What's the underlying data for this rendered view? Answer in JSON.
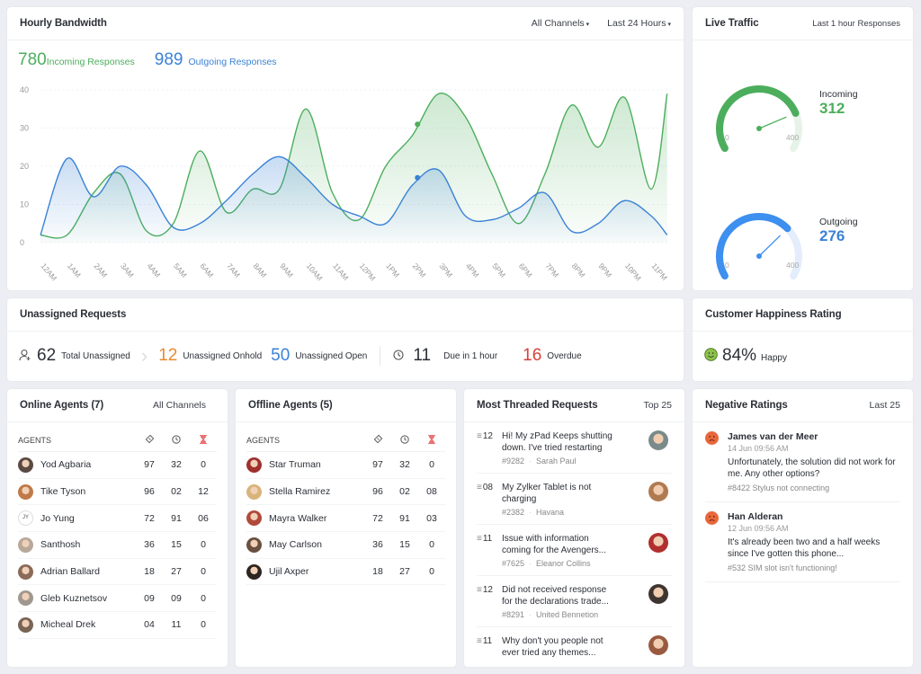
{
  "bandwidth": {
    "title": "Hourly Bandwidth",
    "filter_channels": "All Channels",
    "filter_range": "Last 24 Hours",
    "incoming_count": "780",
    "incoming_label": "Incoming Responses",
    "outgoing_count": "989",
    "outgoing_label": "Outgoing Responses"
  },
  "chart_data": {
    "type": "area",
    "categories": [
      "12AM",
      "1AM",
      "2AM",
      "3AM",
      "4AM",
      "5AM",
      "6AM",
      "7AM",
      "8AM",
      "9AM",
      "10AM",
      "11AM",
      "12PM",
      "1PM",
      "2PM",
      "3PM",
      "4PM",
      "5PM",
      "6PM",
      "7PM",
      "8PM",
      "9PM",
      "10PM",
      "11PM"
    ],
    "x": [
      0,
      1,
      2,
      3,
      4,
      5,
      6,
      7,
      8,
      9,
      10,
      11,
      12,
      13,
      14,
      15,
      16,
      17,
      18,
      19,
      20,
      21,
      22,
      23,
      23.6
    ],
    "ylim": [
      0,
      40
    ],
    "yticks": [
      "0",
      "10",
      "20",
      "30",
      "40"
    ],
    "grid": true,
    "series": [
      {
        "name": "Incoming Responses",
        "color": "#4cae5c",
        "values": [
          2,
          2,
          13,
          18,
          3,
          5,
          24,
          8,
          14,
          14,
          35,
          13,
          6,
          20,
          28,
          39,
          33,
          18,
          5,
          18,
          36,
          25,
          38,
          14,
          39
        ]
      },
      {
        "name": "Outgoing Responses",
        "color": "#3b82d6",
        "values": [
          2,
          22,
          12,
          20,
          15,
          4,
          5,
          11,
          18,
          22.5,
          17,
          10,
          7,
          5,
          15,
          19,
          7,
          6,
          9,
          13,
          3,
          5,
          11,
          7,
          2
        ]
      }
    ],
    "markers": [
      {
        "series": 0,
        "x": 14.2,
        "y": 31
      },
      {
        "series": 1,
        "x": 14.2,
        "y": 17
      }
    ]
  },
  "live_traffic": {
    "title": "Live Traffic",
    "subtitle": "Last 1 hour Responses",
    "gauges": [
      {
        "label": "Incoming",
        "value": 312,
        "min": "0",
        "max": "400",
        "color": "#4cae5c",
        "track": "#e6f3e8"
      },
      {
        "label": "Outgoing",
        "value": 276,
        "min": "0",
        "max": "400",
        "color": "#3d8ff0",
        "track": "#e3edfb"
      }
    ]
  },
  "unassigned": {
    "title": "Unassigned Requests",
    "total": "62",
    "total_label": "Total Unassigned",
    "onhold": "12",
    "onhold_label": "Unassigned Onhold",
    "open": "50",
    "open_label": "Unassigned Open",
    "due": "11",
    "due_label": "Due in 1 hour",
    "overdue": "16",
    "overdue_label": "Overdue",
    "colors": {
      "onhold": "#e98a2f",
      "open": "#3b82d6",
      "overdue": "#d9403a"
    }
  },
  "happiness": {
    "title": "Customer Happiness Rating",
    "value": "84%",
    "label": "Happy"
  },
  "online_agents": {
    "title": "Online Agents (7)",
    "filter": "All Channels",
    "col_agents": "AGENTS",
    "rows": [
      {
        "name": "Yod Agbaria",
        "a": "97",
        "b": "32",
        "c": "0",
        "avatar": "#5a4a42"
      },
      {
        "name": "Tike Tyson",
        "a": "96",
        "b": "02",
        "c": "12",
        "avatar": "#c07a4a"
      },
      {
        "name": "Jo Yung",
        "a": "72",
        "b": "91",
        "c": "06",
        "initials": "JY"
      },
      {
        "name": "Santhosh",
        "a": "36",
        "b": "15",
        "c": "0",
        "avatar": "#b8a89a"
      },
      {
        "name": "Adrian Ballard",
        "a": "18",
        "b": "27",
        "c": "0",
        "avatar": "#8a6a58"
      },
      {
        "name": "Gleb Kuznetsov",
        "a": "09",
        "b": "09",
        "c": "0",
        "avatar": "#a0978e"
      },
      {
        "name": "Micheal Drek",
        "a": "04",
        "b": "11",
        "c": "0",
        "avatar": "#7a6454"
      }
    ]
  },
  "offline_agents": {
    "title": "Offline Agents (5)",
    "col_agents": "AGENTS",
    "rows": [
      {
        "name": "Star Truman",
        "a": "97",
        "b": "32",
        "c": "0",
        "avatar": "#a0302e"
      },
      {
        "name": "Stella Ramirez",
        "a": "96",
        "b": "02",
        "c": "08",
        "avatar": "#d9b47a"
      },
      {
        "name": "Mayra Walker",
        "a": "72",
        "b": "91",
        "c": "03",
        "avatar": "#b04a3a"
      },
      {
        "name": "May Carlson",
        "a": "36",
        "b": "15",
        "c": "0",
        "avatar": "#6a5040"
      },
      {
        "name": "Ujil Axper",
        "a": "18",
        "b": "27",
        "c": "0",
        "avatar": "#2e2420"
      }
    ]
  },
  "threaded": {
    "title": "Most Threaded Requests",
    "filter": "Top 25",
    "items": [
      {
        "count": "12",
        "text": "Hi! My zPad Keeps shutting down. I've tried restarting",
        "id": "#9282",
        "who": "Sarah Paul",
        "avatar": "#7a8a8a"
      },
      {
        "count": "08",
        "text": "My Zylker Tablet is not charging",
        "id": "#2382",
        "who": "Havana",
        "avatar": "#b07a50"
      },
      {
        "count": "11",
        "text": "Issue with information coming for the Avengers...",
        "id": "#7625",
        "who": "Eleanor Collins",
        "avatar": "#b0302e"
      },
      {
        "count": "12",
        "text": "Did not received response  for the declarations trade...",
        "id": "#8291",
        "who": "United Bennetion",
        "avatar": "#3e3430"
      },
      {
        "count": "11",
        "text": "Why don't you people not ever tried any themes...",
        "id": "",
        "who": "",
        "avatar": "#9a5a40"
      }
    ]
  },
  "negative": {
    "title": "Negative Ratings",
    "filter": "Last 25",
    "items": [
      {
        "name": "James van der Meer",
        "date": "14 Jun 09:56 AM",
        "text": "Unfortunately, the solution did not work for me. Any other options?",
        "meta": "#8422  Stylus not connecting"
      },
      {
        "name": "Han Alderan",
        "date": "12 Jun 09:56 AM",
        "text": "It's already been two and a half weeks since I've gotten this phone...",
        "meta": "#532  SIM slot isn't functioning!"
      }
    ]
  }
}
